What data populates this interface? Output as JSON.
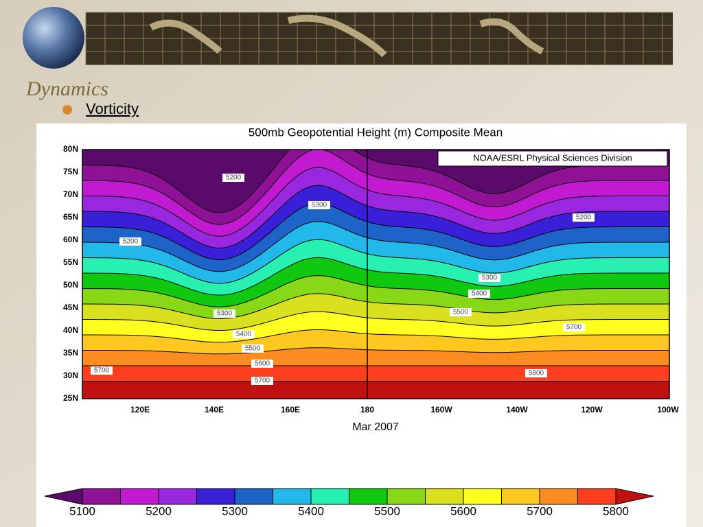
{
  "slide": {
    "title": "Dynamics",
    "bullet": "Vorticity"
  },
  "map": {
    "title": "500mb Geopotential Height (m) Composite Mean",
    "credit": "NOAA/ESRL Physical Sciences Division",
    "lat_labels": [
      "80N",
      "75N",
      "70N",
      "65N",
      "60N",
      "55N",
      "50N",
      "45N",
      "40N",
      "35N",
      "30N",
      "25N"
    ],
    "lon_labels": [
      "120E",
      "140E",
      "160E",
      "180",
      "160W",
      "140W",
      "120W",
      "100W"
    ],
    "date": "Mar 2007",
    "contour_labels": [
      5200,
      5300,
      5200,
      5200,
      5300,
      5400,
      5500,
      5300,
      5400,
      5500,
      5600,
      5700,
      5700,
      5700,
      5800
    ],
    "colorbar": {
      "labels": [
        5100,
        5200,
        5300,
        5400,
        5500,
        5600,
        5700,
        5800
      ],
      "colors": [
        "#5a0a6a",
        "#8e1196",
        "#c21ad0",
        "#9a27e0",
        "#3a1fd8",
        "#1e64c8",
        "#22b8ea",
        "#28f0b0",
        "#10c810",
        "#88d818",
        "#d8e020",
        "#ffff20",
        "#ffc820",
        "#ff8c20",
        "#ff4020",
        "#c01010"
      ]
    }
  }
}
